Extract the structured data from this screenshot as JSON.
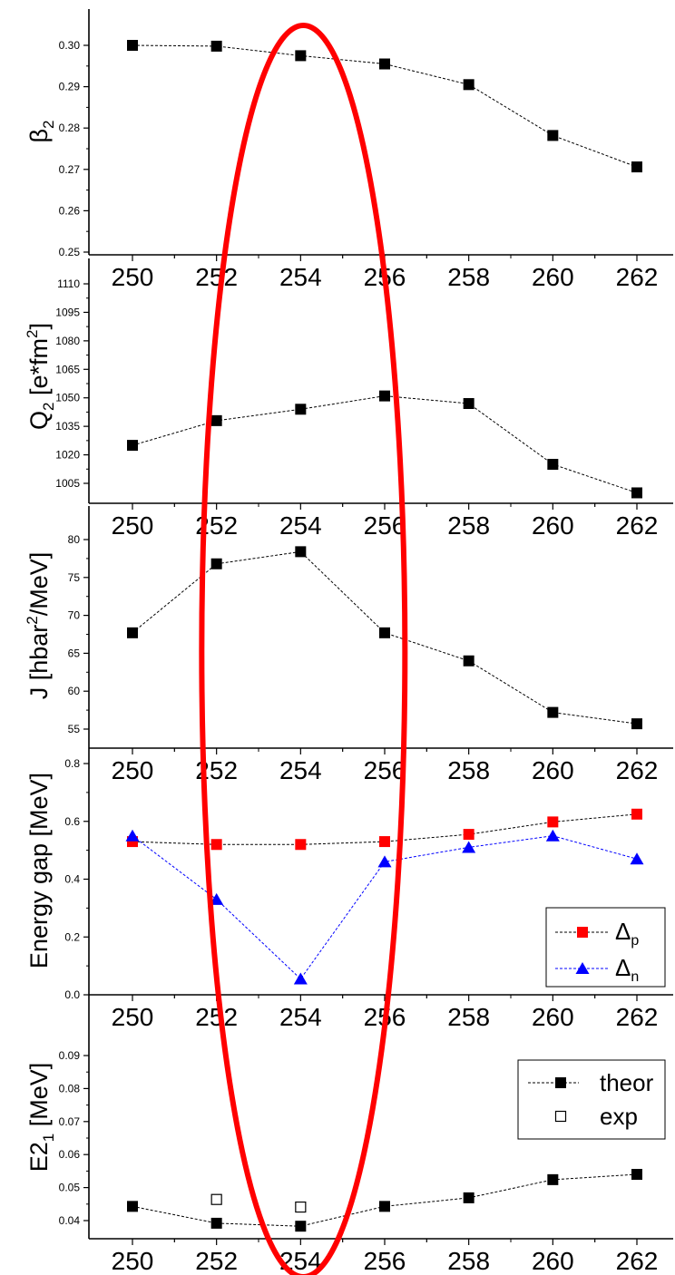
{
  "chart_data": [
    {
      "type": "line",
      "ylabel": "β",
      "ylabel_sub": "2",
      "x": [
        250,
        252,
        254,
        256,
        258,
        260,
        262
      ],
      "xticks": [
        "250",
        "252",
        "254",
        "256",
        "258",
        "260",
        "262"
      ],
      "ylim": [
        0.25,
        0.31
      ],
      "yticks": [
        "0.25",
        "0.26",
        "0.27",
        "0.28",
        "0.29",
        "0.30"
      ],
      "series": [
        {
          "values": [
            0.3,
            0.2998,
            0.2975,
            0.2955,
            0.2905,
            0.2782,
            0.2706
          ],
          "marker": "filled-square",
          "color": "#000000"
        }
      ]
    },
    {
      "type": "line",
      "ylabel": "Q",
      "ylabel_sub": "2",
      "ylabel_tail": " [e*fm",
      "ylabel_sup": "2",
      "ylabel_end": "]",
      "x": [
        250,
        252,
        254,
        256,
        258,
        260,
        262
      ],
      "xticks": [
        "250",
        "252",
        "254",
        "256",
        "258",
        "260",
        "262"
      ],
      "ylim": [
        994,
        1120
      ],
      "yticks": [
        "1005",
        "1020",
        "1035",
        "1050",
        "1065",
        "1080",
        "1095",
        "1110"
      ],
      "series": [
        {
          "values": [
            1025,
            1038,
            1044,
            1051,
            1047,
            1015,
            1000
          ],
          "marker": "filled-square",
          "color": "#000000"
        }
      ]
    },
    {
      "type": "line",
      "ylabel": "J [hbar",
      "ylabel_sup": "2",
      "ylabel_end": "/MeV]",
      "x": [
        250,
        252,
        254,
        256,
        258,
        260,
        262
      ],
      "xticks": [
        "250",
        "252",
        "254",
        "256",
        "258",
        "260",
        "262"
      ],
      "ylim": [
        53,
        84
      ],
      "yticks": [
        "55",
        "60",
        "65",
        "70",
        "75",
        "80"
      ],
      "series": [
        {
          "values": [
            67.7,
            76.8,
            78.4,
            67.7,
            64.0,
            57.2,
            55.7
          ],
          "marker": "filled-square",
          "color": "#000000"
        }
      ]
    },
    {
      "type": "line",
      "ylabel": "Energy gap [MeV]",
      "x": [
        250,
        252,
        254,
        256,
        258,
        260,
        262
      ],
      "xticks": [
        "250",
        "252",
        "254",
        "256",
        "258",
        "260",
        "262"
      ],
      "ylim": [
        0.0,
        0.8
      ],
      "yticks": [
        "0.0",
        "0.2",
        "0.4",
        "0.6",
        "0.8"
      ],
      "legend": "bottom-right",
      "series": [
        {
          "name": "Δ",
          "sub": "p",
          "values": [
            0.53,
            0.52,
            0.52,
            0.53,
            0.555,
            0.598,
            0.625
          ],
          "marker": "filled-square",
          "color": "#ff0000",
          "line_color": "#000000"
        },
        {
          "name": "Δ",
          "sub": "n",
          "values": [
            0.55,
            0.33,
            0.055,
            0.46,
            0.51,
            0.55,
            0.47
          ],
          "marker": "filled-triangle",
          "color": "#0000ff",
          "line_color": "#0000ff"
        }
      ]
    },
    {
      "type": "line",
      "ylabel": "E2",
      "ylabel_sub": "1",
      "ylabel_tail": " [MeV]",
      "x": [
        250,
        252,
        254,
        256,
        258,
        260,
        262
      ],
      "xticks": [
        "250",
        "252",
        "254",
        "256",
        "258",
        "260",
        "262"
      ],
      "ylim": [
        0.034,
        0.097
      ],
      "yticks": [
        "0.04",
        "0.05",
        "0.06",
        "0.07",
        "0.08",
        "0.09"
      ],
      "legend": "top-right",
      "series": [
        {
          "name": "theor",
          "values": [
            0.0443,
            0.0392,
            0.0383,
            0.0443,
            0.0469,
            0.0524,
            0.054
          ],
          "marker": "filled-square",
          "color": "#000000"
        },
        {
          "name": "exp",
          "x": [
            252,
            254
          ],
          "values": [
            0.0464,
            0.0441
          ],
          "marker": "open-square",
          "color": "#000000",
          "no_line": true
        }
      ]
    }
  ],
  "highlight": {
    "shape": "ellipse",
    "color": "#ff0000",
    "center_x_value": 254.0
  }
}
